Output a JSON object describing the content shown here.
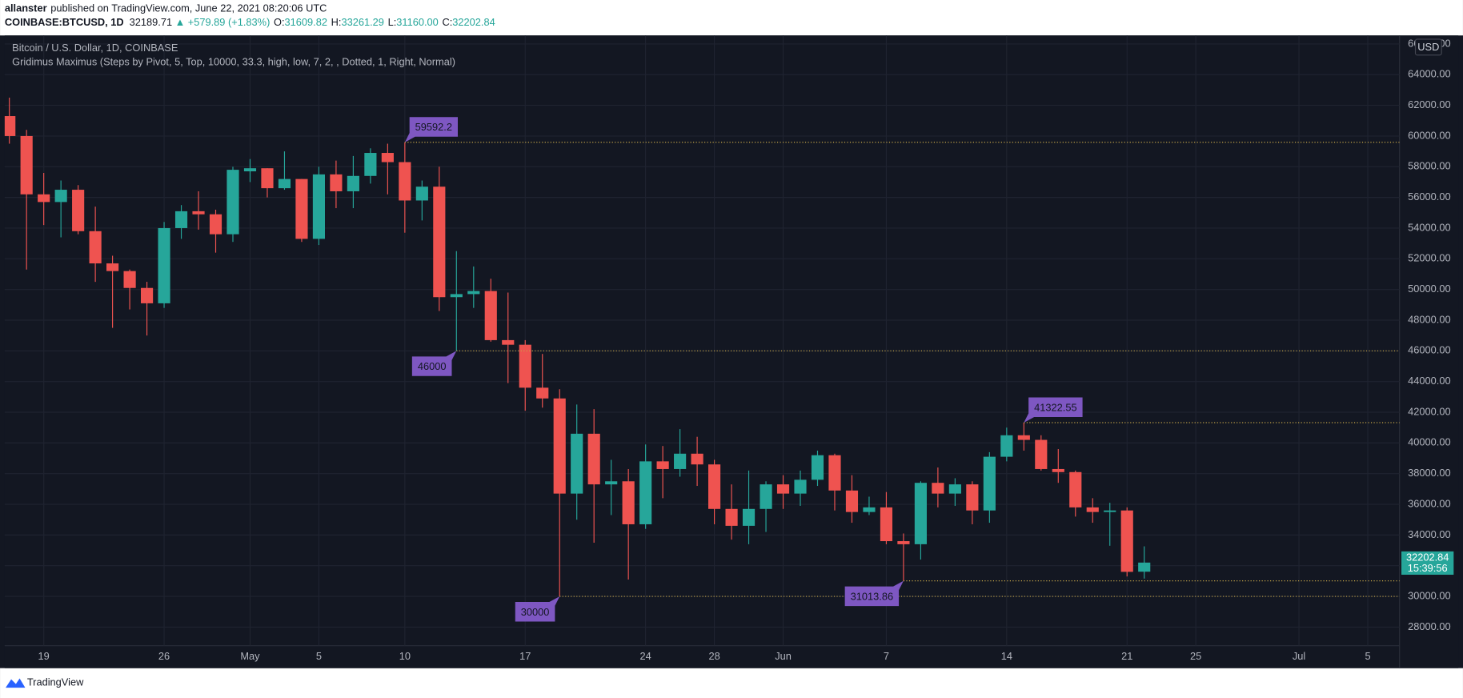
{
  "header": {
    "author": "allanster",
    "published": "published on TradingView.com, June 22, 2021 08:20:06 UTC",
    "symbol": "COINBASE:BTCUSD, 1D",
    "last": "32189.71",
    "arrow": "▲",
    "change": "+579.89 (+1.83%)",
    "ohlc": [
      {
        "key": "O:",
        "value": "31609.82"
      },
      {
        "key": "H:",
        "value": "33261.29"
      },
      {
        "key": "L:",
        "value": "31160.00"
      },
      {
        "key": "C:",
        "value": "32202.84"
      }
    ]
  },
  "chart_data": {
    "type": "candlestick",
    "title": "Bitcoin / U.S. Dollar, 1D, COINBASE",
    "indicator": "Gridimus Maximus (Steps by Pivot, 5, Top, 10000, 33.3, high, low, 7, 2, , Dotted, 1, Right, Normal)",
    "currency": "USD",
    "categories": [
      null,
      null,
      "19",
      null,
      null,
      null,
      null,
      null,
      null,
      "26",
      null,
      null,
      null,
      null,
      "May",
      null,
      null,
      null,
      "5",
      null,
      null,
      null,
      null,
      "10",
      null,
      null,
      null,
      null,
      null,
      null,
      "17",
      null,
      null,
      null,
      null,
      null,
      null,
      "24",
      null,
      null,
      null,
      "28",
      null,
      null,
      null,
      "Jun",
      null,
      null,
      null,
      null,
      null,
      "7",
      null,
      null,
      null,
      null,
      null,
      null,
      "14",
      null,
      null,
      null,
      null,
      null,
      null,
      "21",
      null,
      null,
      null,
      "25",
      null,
      null,
      null,
      null,
      null,
      "Jul",
      null,
      null,
      null,
      "5"
    ],
    "open": [
      61300,
      60000,
      56200,
      55700,
      56500,
      53800,
      51700,
      51200,
      50100,
      49100,
      54000,
      55100,
      54900,
      53600,
      57700,
      57900,
      56600,
      57200,
      53300,
      57500,
      56400,
      57400,
      58900,
      58300,
      55800,
      56700,
      49500,
      49700,
      49900,
      46700,
      46400,
      43600,
      42900,
      36700,
      40600,
      37300,
      37500,
      34700,
      38800,
      38300,
      39300,
      38600,
      35700,
      34600,
      35700,
      37300,
      36700,
      37600,
      39200,
      36900,
      35500,
      35800,
      33600,
      33400,
      37400,
      36700,
      37300,
      35600,
      39100,
      40500,
      40200,
      38300,
      38100,
      35800,
      35500,
      35600,
      31609.82,
      null,
      null,
      null,
      null,
      null,
      null,
      null,
      null,
      null,
      null,
      null,
      null,
      null
    ],
    "high": [
      62500,
      60400,
      57600,
      57100,
      56800,
      55400,
      52200,
      51300,
      50500,
      54400,
      55500,
      56400,
      55200,
      58000,
      58500,
      57900,
      59000,
      57200,
      58000,
      58400,
      58700,
      59200,
      59500,
      59592.2,
      57100,
      58000,
      52500,
      51500,
      50700,
      49800,
      46700,
      45800,
      43500,
      42500,
      42200,
      38900,
      38300,
      39900,
      39800,
      40900,
      40400,
      38900,
      37300,
      38200,
      37500,
      37900,
      38200,
      39500,
      39300,
      37900,
      36500,
      36800,
      34100,
      37500,
      38400,
      37700,
      37500,
      39400,
      41000,
      41322.55,
      40500,
      39600,
      38200,
      36400,
      36100,
      35800,
      33261.29,
      null,
      null,
      null,
      null,
      null,
      null,
      null,
      null,
      null,
      null,
      null,
      null,
      null
    ],
    "low": [
      59500,
      51300,
      54200,
      53400,
      53600,
      50500,
      47500,
      48700,
      47000,
      48800,
      53300,
      53900,
      52400,
      53100,
      57000,
      56000,
      56500,
      53100,
      52900,
      55300,
      55300,
      56900,
      56200,
      53700,
      54500,
      48600,
      46000,
      48800,
      46600,
      43900,
      42100,
      42300,
      30000,
      35000,
      33500,
      35300,
      31100,
      34400,
      36400,
      37800,
      37200,
      34700,
      33700,
      33400,
      34200,
      35700,
      35900,
      37200,
      35600,
      34800,
      35300,
      33400,
      31013.86,
      32400,
      35800,
      35900,
      34700,
      34800,
      38800,
      39500,
      38200,
      37400,
      35200,
      34800,
      33300,
      31300,
      31160,
      null,
      null,
      null,
      null,
      null,
      null,
      null,
      null,
      null,
      null,
      null,
      null,
      null
    ],
    "close": [
      60000,
      56200,
      55700,
      56500,
      53800,
      51700,
      51200,
      50100,
      49100,
      54000,
      55100,
      54900,
      53600,
      57800,
      57900,
      56600,
      57200,
      53300,
      57500,
      56400,
      57400,
      58900,
      58300,
      55800,
      56700,
      49500,
      49700,
      49900,
      46700,
      46400,
      43600,
      42900,
      36700,
      40600,
      37300,
      37500,
      34700,
      38800,
      38300,
      39300,
      38600,
      35700,
      34600,
      35700,
      37300,
      36700,
      37600,
      39200,
      36900,
      35500,
      35800,
      33600,
      33400,
      37400,
      36700,
      37300,
      35600,
      39100,
      40500,
      40200,
      38300,
      38100,
      35800,
      35500,
      35600,
      31600,
      32202.84,
      null,
      null,
      null,
      null,
      null,
      null,
      null,
      null,
      null,
      null,
      null,
      null,
      null
    ],
    "up_color": "#26a69a",
    "down_color": "#ef5350",
    "pivot_color": "#7e57c2",
    "pivot_line_color": "#c9a94a",
    "pivots": [
      59592.2,
      46000,
      30000,
      41322.55,
      31013.86
    ],
    "ylim": [
      26784,
      66554
    ],
    "yticks": [
      {
        "value": 28000,
        "label": "28000.00"
      },
      {
        "value": 30000,
        "label": "30000.00"
      },
      {
        "value": 32000,
        "label": "32000.00"
      },
      {
        "value": 34000,
        "label": "34000.00"
      },
      {
        "value": 36000,
        "label": "36000.00"
      },
      {
        "value": 38000,
        "label": "38000.00"
      },
      {
        "value": 40000,
        "label": "40000.00"
      },
      {
        "value": 42000,
        "label": "42000.00"
      },
      {
        "value": 44000,
        "label": "44000.00"
      },
      {
        "value": 46000,
        "label": "46000.00"
      },
      {
        "value": 48000,
        "label": "48000.00"
      },
      {
        "value": 50000,
        "label": "50000.00"
      },
      {
        "value": 52000,
        "label": "52000.00"
      },
      {
        "value": 54000,
        "label": "54000.00"
      },
      {
        "value": 56000,
        "label": "56000.00"
      },
      {
        "value": 58000,
        "label": "58000.00"
      },
      {
        "value": 60000,
        "label": "60000.00"
      },
      {
        "value": 62000,
        "label": "62000.00"
      },
      {
        "value": 64000,
        "label": "64000.00"
      },
      {
        "value": 66000,
        "label": "66000.00"
      }
    ],
    "grid": true,
    "price_badge": {
      "price": "32202.84",
      "countdown": "15:39:56"
    }
  },
  "footer": {
    "logo": "TradingView"
  }
}
